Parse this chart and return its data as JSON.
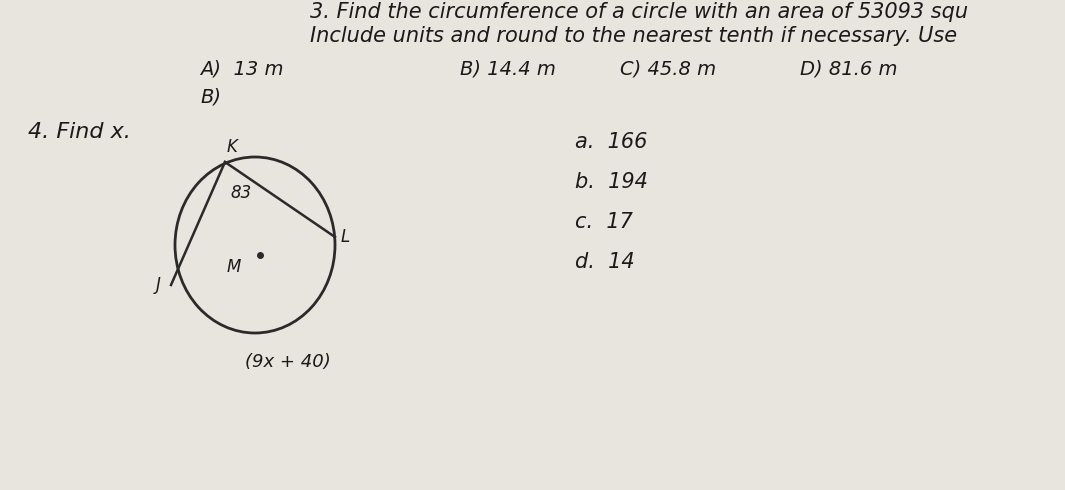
{
  "bg_color": "#e8e4de",
  "text_color": "#1a1a1a",
  "q3_line1": "3. Find the circumference of a circle with an area of 53093 squ",
  "q3_line2": "Include units and round to the nearest tenth if necessary. Use",
  "q4_label": "4. Find x.",
  "q3_A": "A)  13 m",
  "q3_B_opt": "B) 14.4 m",
  "q3_C": "C) 45.8 m",
  "q3_D": "D) 81.6 m",
  "q3_answer": "B)",
  "q4_options": [
    "a.  166",
    "b.  194",
    "c.  17",
    "d.  14"
  ],
  "circle_label_83": "83",
  "circle_label_expr": "(9x + 40)",
  "circle_label_K": "K",
  "circle_label_L": "L",
  "circle_label_J": "J",
  "circle_label_M": "M",
  "font_size_header": 15,
  "font_size_options": 14,
  "font_size_q4_opts": 15,
  "font_size_circle": 12
}
